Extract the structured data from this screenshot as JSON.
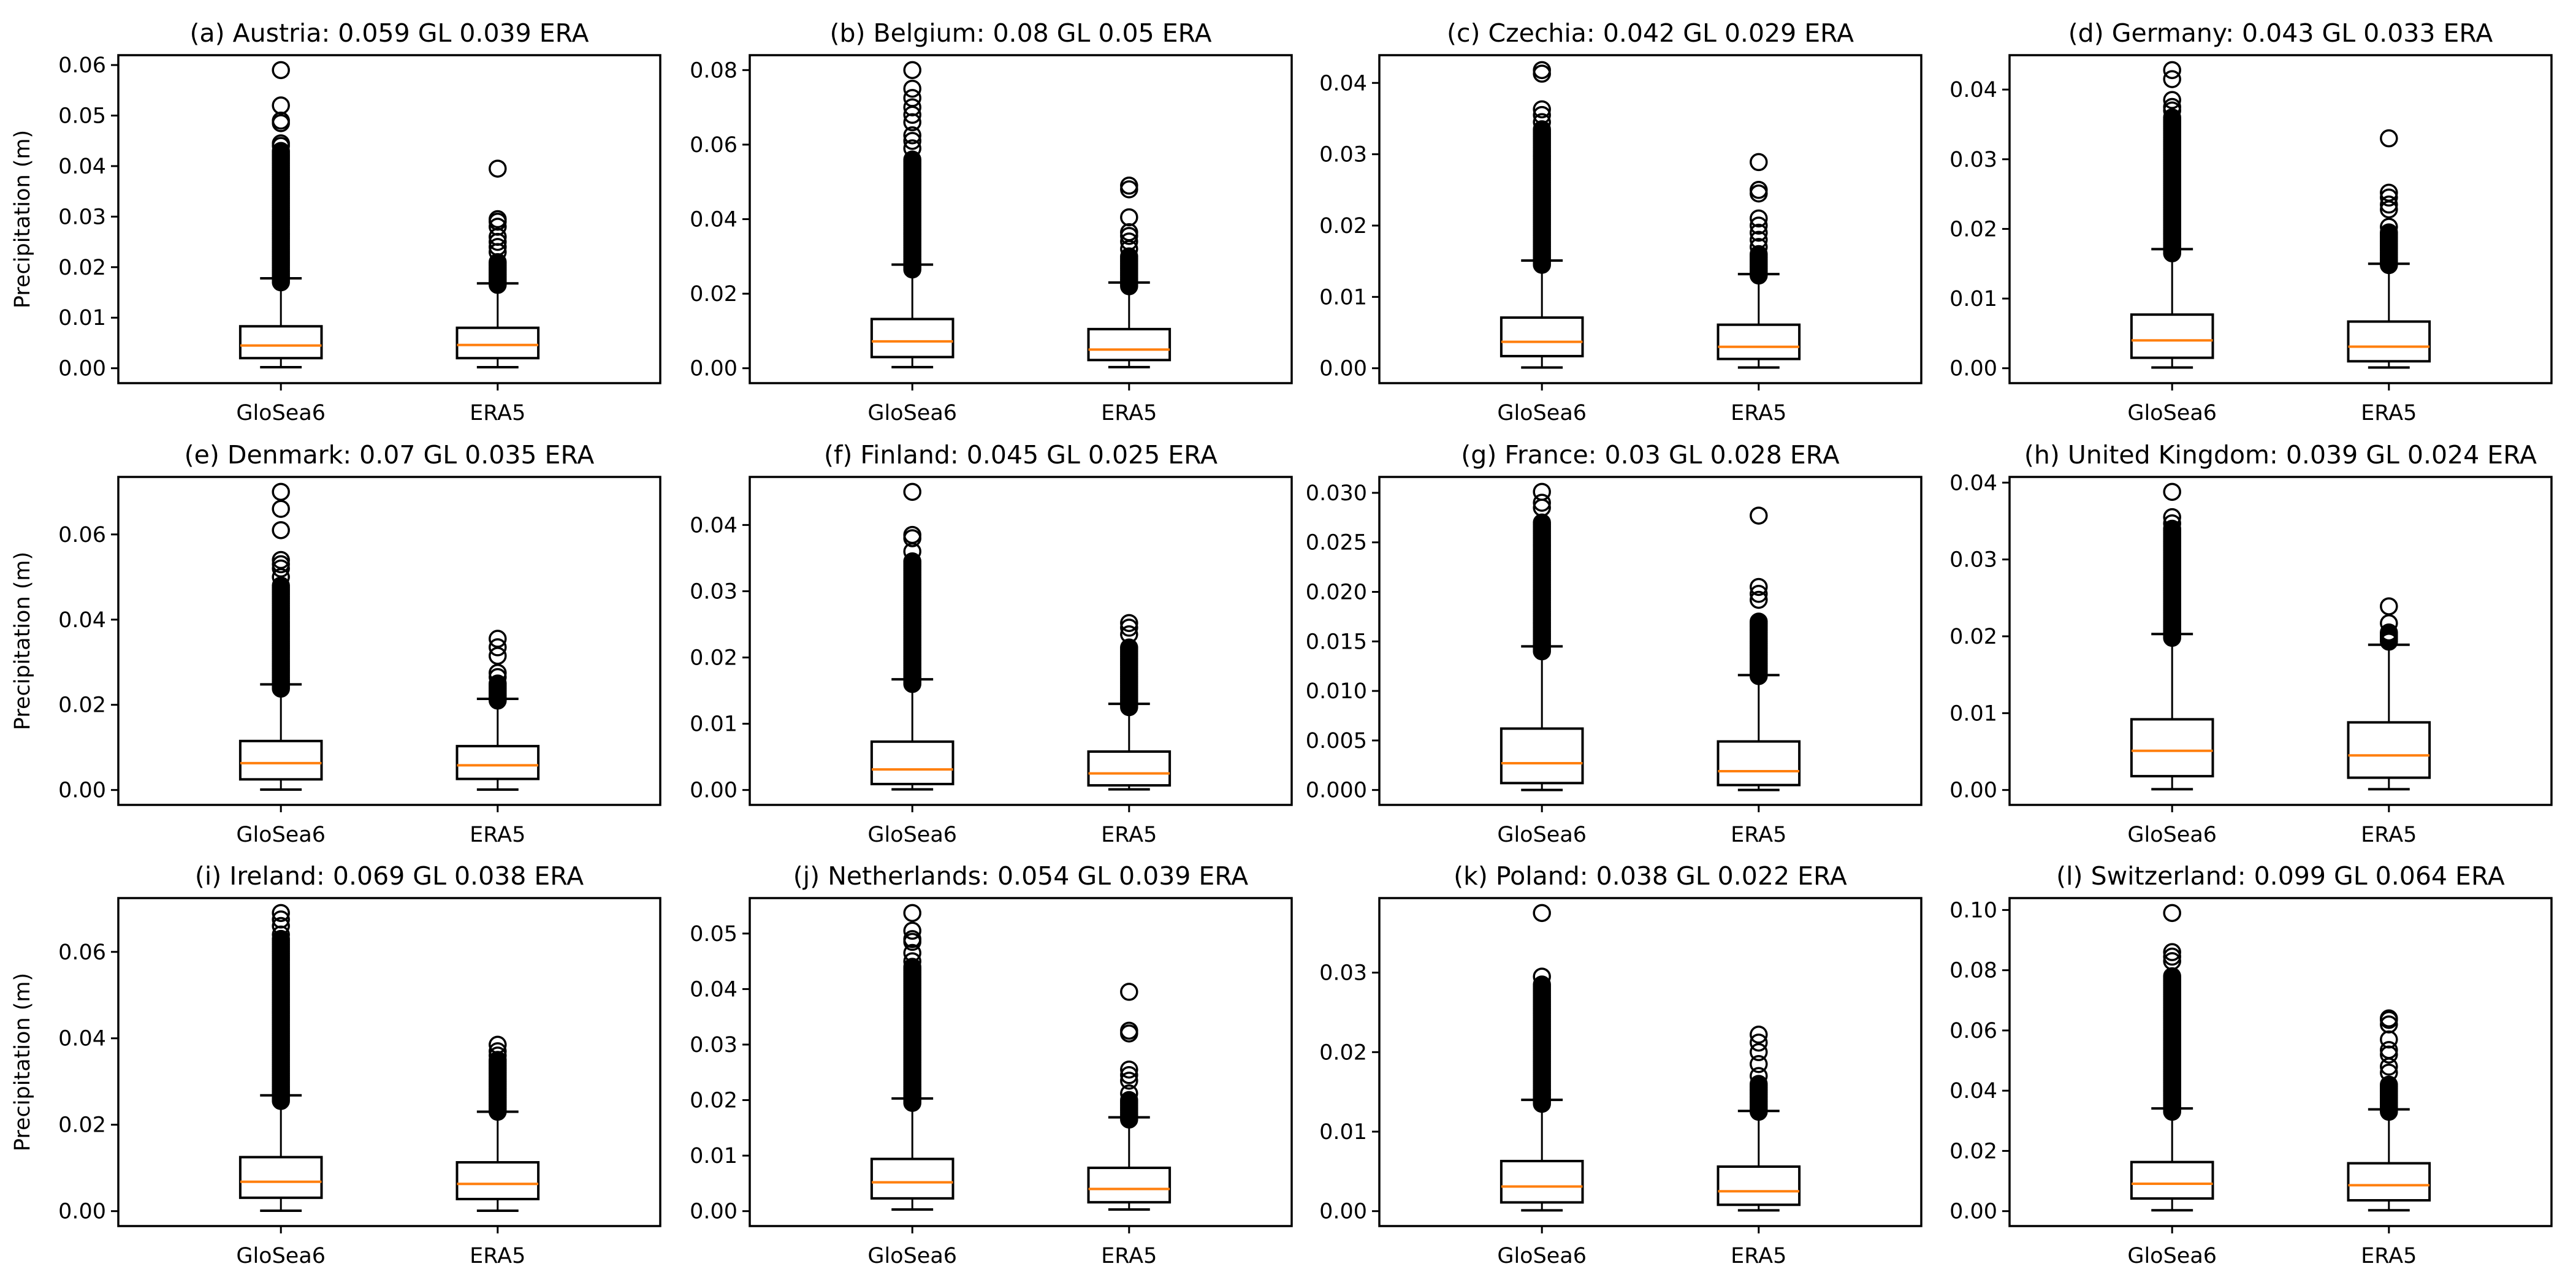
{
  "figure": {
    "ylabel": "Precipitation (m)",
    "colors": {
      "box": "#000000",
      "median": "#ff7f0e",
      "flier": "#000000",
      "background": "#ffffff"
    }
  },
  "chart_data": [
    {
      "type": "box",
      "title": "(a) Austria: 0.059 GL 0.039 ERA",
      "ylabel": "Precipitation (m)",
      "categories": [
        "GloSea6",
        "ERA5"
      ],
      "yticks": [
        0.0,
        0.01,
        0.02,
        0.03,
        0.04,
        0.05,
        0.06
      ],
      "ytick_labels": [
        "0.00",
        "0.01",
        "0.02",
        "0.03",
        "0.04",
        "0.05",
        "0.06"
      ],
      "series": [
        {
          "name": "GloSea6",
          "whislo": 0.0002,
          "q1": 0.002,
          "med": 0.0045,
          "q3": 0.0083,
          "whishi": 0.0178,
          "fliers_dense_range": [
            0.017,
            0.043
          ],
          "fliers": [
            0.044,
            0.0445,
            0.0485,
            0.049,
            0.052,
            0.059
          ]
        },
        {
          "name": "ERA5",
          "whislo": 0.0002,
          "q1": 0.002,
          "med": 0.0046,
          "q3": 0.008,
          "whishi": 0.0168,
          "fliers_dense_range": [
            0.0165,
            0.021
          ],
          "fliers": [
            0.023,
            0.024,
            0.025,
            0.026,
            0.028,
            0.029,
            0.0295,
            0.0395
          ]
        }
      ]
    },
    {
      "type": "box",
      "title": "(b) Belgium: 0.08 GL 0.05 ERA",
      "ylabel": "",
      "categories": [
        "GloSea6",
        "ERA5"
      ],
      "yticks": [
        0.0,
        0.02,
        0.04,
        0.06,
        0.08
      ],
      "ytick_labels": [
        "0.00",
        "0.02",
        "0.04",
        "0.06",
        "0.08"
      ],
      "series": [
        {
          "name": "GloSea6",
          "whislo": 0.0003,
          "q1": 0.003,
          "med": 0.0072,
          "q3": 0.0132,
          "whishi": 0.0278,
          "fliers_dense_range": [
            0.0265,
            0.056
          ],
          "fliers": [
            0.059,
            0.061,
            0.0625,
            0.066,
            0.068,
            0.07,
            0.0725,
            0.075,
            0.08
          ]
        },
        {
          "name": "ERA5",
          "whislo": 0.0003,
          "q1": 0.0022,
          "med": 0.005,
          "q3": 0.0105,
          "whishi": 0.023,
          "fliers_dense_range": [
            0.022,
            0.03
          ],
          "fliers": [
            0.032,
            0.034,
            0.0355,
            0.0365,
            0.0405,
            0.048,
            0.049
          ]
        }
      ]
    },
    {
      "type": "box",
      "title": "(c) Czechia: 0.042 GL 0.029 ERA",
      "ylabel": "",
      "categories": [
        "GloSea6",
        "ERA5"
      ],
      "yticks": [
        0.0,
        0.01,
        0.02,
        0.03,
        0.04
      ],
      "ytick_labels": [
        "0.00",
        "0.01",
        "0.02",
        "0.03",
        "0.04"
      ],
      "series": [
        {
          "name": "GloSea6",
          "whislo": 0.0001,
          "q1": 0.0017,
          "med": 0.0037,
          "q3": 0.0071,
          "whishi": 0.0151,
          "fliers_dense_range": [
            0.0145,
            0.0335
          ],
          "fliers": [
            0.0345,
            0.0355,
            0.0363,
            0.0413,
            0.0418
          ]
        },
        {
          "name": "ERA5",
          "whislo": 0.0001,
          "q1": 0.0013,
          "med": 0.003,
          "q3": 0.0061,
          "whishi": 0.0132,
          "fliers_dense_range": [
            0.013,
            0.016
          ],
          "fliers": [
            0.017,
            0.018,
            0.019,
            0.02,
            0.021,
            0.0245,
            0.025,
            0.0289
          ]
        }
      ]
    },
    {
      "type": "box",
      "title": "(d) Germany: 0.043 GL 0.033 ERA",
      "ylabel": "",
      "categories": [
        "GloSea6",
        "ERA5"
      ],
      "yticks": [
        0.0,
        0.01,
        0.02,
        0.03,
        0.04
      ],
      "ytick_labels": [
        "0.00",
        "0.01",
        "0.02",
        "0.03",
        "0.04"
      ],
      "series": [
        {
          "name": "GloSea6",
          "whislo": 0.0001,
          "q1": 0.0015,
          "med": 0.004,
          "q3": 0.0077,
          "whishi": 0.0171,
          "fliers_dense_range": [
            0.0165,
            0.036
          ],
          "fliers": [
            0.037,
            0.0375,
            0.0385,
            0.0415,
            0.0428
          ]
        },
        {
          "name": "ERA5",
          "whislo": 0.0001,
          "q1": 0.001,
          "med": 0.0031,
          "q3": 0.0067,
          "whishi": 0.015,
          "fliers_dense_range": [
            0.0148,
            0.0195
          ],
          "fliers": [
            0.0203,
            0.0228,
            0.0235,
            0.0245,
            0.0252,
            0.033
          ]
        }
      ]
    },
    {
      "type": "box",
      "title": "(e) Denmark: 0.07 GL 0.035 ERA",
      "ylabel": "Precipitation (m)",
      "categories": [
        "GloSea6",
        "ERA5"
      ],
      "yticks": [
        0.0,
        0.02,
        0.04,
        0.06
      ],
      "ytick_labels": [
        "0.00",
        "0.02",
        "0.04",
        "0.06"
      ],
      "series": [
        {
          "name": "GloSea6",
          "whislo": 0.0001,
          "q1": 0.0025,
          "med": 0.0063,
          "q3": 0.0115,
          "whishi": 0.0248,
          "fliers_dense_range": [
            0.0238,
            0.048
          ],
          "fliers": [
            0.05,
            0.052,
            0.053,
            0.054,
            0.061,
            0.066,
            0.07
          ]
        },
        {
          "name": "ERA5",
          "whislo": 0.0001,
          "q1": 0.0026,
          "med": 0.0058,
          "q3": 0.0103,
          "whishi": 0.0214,
          "fliers_dense_range": [
            0.021,
            0.025
          ],
          "fliers": [
            0.0265,
            0.0275,
            0.0315,
            0.0335,
            0.0355
          ]
        }
      ]
    },
    {
      "type": "box",
      "title": "(f) Finland: 0.045 GL 0.025 ERA",
      "ylabel": "",
      "categories": [
        "GloSea6",
        "ERA5"
      ],
      "yticks": [
        0.0,
        0.01,
        0.02,
        0.03,
        0.04
      ],
      "ytick_labels": [
        "0.00",
        "0.01",
        "0.02",
        "0.03",
        "0.04"
      ],
      "series": [
        {
          "name": "GloSea6",
          "whislo": 0.0001,
          "q1": 0.0009,
          "med": 0.0031,
          "q3": 0.0073,
          "whishi": 0.0167,
          "fliers_dense_range": [
            0.016,
            0.0345
          ],
          "fliers": [
            0.036,
            0.038,
            0.0385,
            0.045
          ]
        },
        {
          "name": "ERA5",
          "whislo": 0.0001,
          "q1": 0.0007,
          "med": 0.0025,
          "q3": 0.0058,
          "whishi": 0.013,
          "fliers_dense_range": [
            0.0125,
            0.0215
          ],
          "fliers": [
            0.0235,
            0.0245,
            0.0252
          ]
        }
      ]
    },
    {
      "type": "box",
      "title": "(g) France: 0.03 GL 0.028 ERA",
      "ylabel": "",
      "categories": [
        "GloSea6",
        "ERA5"
      ],
      "yticks": [
        0.0,
        0.005,
        0.01,
        0.015,
        0.02,
        0.025,
        0.03
      ],
      "ytick_labels": [
        "0.000",
        "0.005",
        "0.010",
        "0.015",
        "0.020",
        "0.025",
        "0.030"
      ],
      "series": [
        {
          "name": "GloSea6",
          "whislo": 0.0,
          "q1": 0.0007,
          "med": 0.0027,
          "q3": 0.0062,
          "whishi": 0.0145,
          "fliers_dense_range": [
            0.014,
            0.027
          ],
          "fliers": [
            0.0285,
            0.029,
            0.0301
          ]
        },
        {
          "name": "ERA5",
          "whislo": 0.0,
          "q1": 0.0005,
          "med": 0.0019,
          "q3": 0.0049,
          "whishi": 0.0116,
          "fliers_dense_range": [
            0.0115,
            0.017
          ],
          "fliers": [
            0.0192,
            0.0198,
            0.0205,
            0.0277
          ]
        }
      ]
    },
    {
      "type": "box",
      "title": "(h) United Kingdom: 0.039 GL 0.024 ERA",
      "ylabel": "",
      "categories": [
        "GloSea6",
        "ERA5"
      ],
      "yticks": [
        0.0,
        0.01,
        0.02,
        0.03,
        0.04
      ],
      "ytick_labels": [
        "0.00",
        "0.01",
        "0.02",
        "0.03",
        "0.04"
      ],
      "series": [
        {
          "name": "GloSea6",
          "whislo": 0.0001,
          "q1": 0.0018,
          "med": 0.0051,
          "q3": 0.0092,
          "whishi": 0.0203,
          "fliers_dense_range": [
            0.0198,
            0.034
          ],
          "fliers": [
            0.0347,
            0.0355,
            0.0388
          ]
        },
        {
          "name": "ERA5",
          "whislo": 0.0001,
          "q1": 0.0016,
          "med": 0.0045,
          "q3": 0.0088,
          "whishi": 0.0189,
          "fliers_dense_range": [
            0.0193,
            0.0205
          ],
          "fliers": [
            0.0217,
            0.0239
          ]
        }
      ]
    },
    {
      "type": "box",
      "title": "(i) Ireland: 0.069 GL 0.038 ERA",
      "ylabel": "Precipitation (m)",
      "categories": [
        "GloSea6",
        "ERA5"
      ],
      "yticks": [
        0.0,
        0.02,
        0.04,
        0.06
      ],
      "ytick_labels": [
        "0.00",
        "0.02",
        "0.04",
        "0.06"
      ],
      "series": [
        {
          "name": "GloSea6",
          "whislo": 0.0001,
          "q1": 0.0031,
          "med": 0.0068,
          "q3": 0.0125,
          "whishi": 0.0268,
          "fliers_dense_range": [
            0.0255,
            0.063
          ],
          "fliers": [
            0.064,
            0.066,
            0.0675,
            0.069
          ]
        },
        {
          "name": "ERA5",
          "whislo": 0.0001,
          "q1": 0.0028,
          "med": 0.0063,
          "q3": 0.0113,
          "whishi": 0.023,
          "fliers_dense_range": [
            0.023,
            0.035
          ],
          "fliers": [
            0.036,
            0.037,
            0.0385
          ]
        }
      ]
    },
    {
      "type": "box",
      "title": "(j) Netherlands: 0.054 GL 0.039 ERA",
      "ylabel": "",
      "categories": [
        "GloSea6",
        "ERA5"
      ],
      "yticks": [
        0.0,
        0.01,
        0.02,
        0.03,
        0.04,
        0.05
      ],
      "ytick_labels": [
        "0.00",
        "0.01",
        "0.02",
        "0.03",
        "0.04",
        "0.05"
      ],
      "series": [
        {
          "name": "GloSea6",
          "whislo": 0.0003,
          "q1": 0.0023,
          "med": 0.0052,
          "q3": 0.0094,
          "whishi": 0.0203,
          "fliers_dense_range": [
            0.0195,
            0.044
          ],
          "fliers": [
            0.045,
            0.0465,
            0.0485,
            0.049,
            0.0505,
            0.0537
          ]
        },
        {
          "name": "ERA5",
          "whislo": 0.0003,
          "q1": 0.0016,
          "med": 0.004,
          "q3": 0.0078,
          "whishi": 0.0169,
          "fliers_dense_range": [
            0.0165,
            0.02
          ],
          "fliers": [
            0.0212,
            0.0235,
            0.0245,
            0.0255,
            0.032,
            0.0325,
            0.0395
          ]
        }
      ]
    },
    {
      "type": "box",
      "title": "(k) Poland: 0.038 GL 0.022 ERA",
      "ylabel": "",
      "categories": [
        "GloSea6",
        "ERA5"
      ],
      "yticks": [
        0.0,
        0.01,
        0.02,
        0.03
      ],
      "ytick_labels": [
        "0.00",
        "0.01",
        "0.02",
        "0.03"
      ],
      "series": [
        {
          "name": "GloSea6",
          "whislo": 0.0001,
          "q1": 0.0011,
          "med": 0.0031,
          "q3": 0.0063,
          "whishi": 0.014,
          "fliers_dense_range": [
            0.0135,
            0.0285
          ],
          "fliers": [
            0.0295,
            0.0375
          ]
        },
        {
          "name": "ERA5",
          "whislo": 0.0001,
          "q1": 0.0008,
          "med": 0.0025,
          "q3": 0.0056,
          "whishi": 0.0126,
          "fliers_dense_range": [
            0.0125,
            0.016
          ],
          "fliers": [
            0.017,
            0.0185,
            0.02,
            0.0212,
            0.0222
          ]
        }
      ]
    },
    {
      "type": "box",
      "title": "(l) Switzerland: 0.099 GL 0.064 ERA",
      "ylabel": "",
      "categories": [
        "GloSea6",
        "ERA5"
      ],
      "yticks": [
        0.0,
        0.02,
        0.04,
        0.06,
        0.08,
        0.1
      ],
      "ytick_labels": [
        "0.00",
        "0.02",
        "0.04",
        "0.06",
        "0.08",
        "0.10"
      ],
      "series": [
        {
          "name": "GloSea6",
          "whislo": 0.0003,
          "q1": 0.0042,
          "med": 0.0091,
          "q3": 0.0163,
          "whishi": 0.0341,
          "fliers_dense_range": [
            0.033,
            0.078
          ],
          "fliers": [
            0.083,
            0.0845,
            0.086,
            0.099
          ]
        },
        {
          "name": "ERA5",
          "whislo": 0.0003,
          "q1": 0.0036,
          "med": 0.0086,
          "q3": 0.0159,
          "whishi": 0.0338,
          "fliers_dense_range": [
            0.033,
            0.042
          ],
          "fliers": [
            0.046,
            0.048,
            0.052,
            0.0535,
            0.057,
            0.062,
            0.0635,
            0.064
          ]
        }
      ]
    }
  ]
}
